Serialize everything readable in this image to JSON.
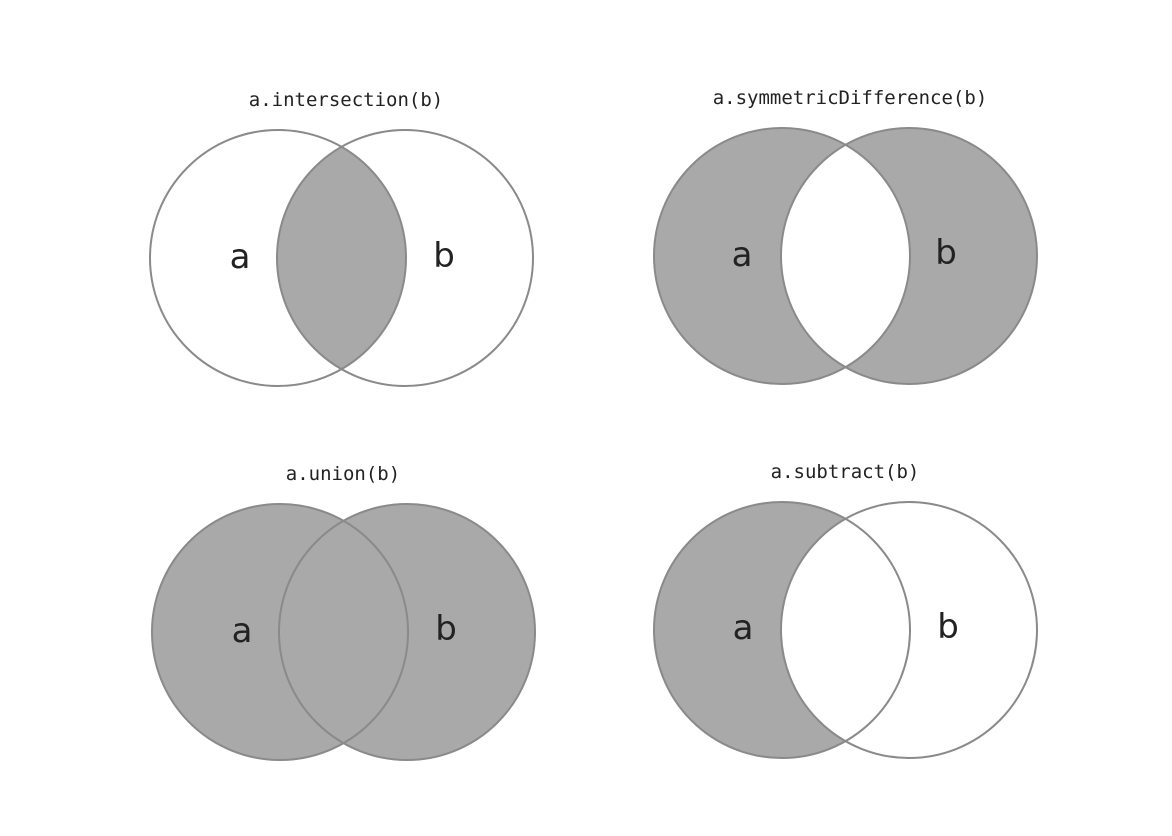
{
  "colors": {
    "shade": "#a9a9a9",
    "outline": "#8a8a8a",
    "background": "#ffffff",
    "text": "#222222"
  },
  "panels": [
    {
      "id": "intersection",
      "title": "a.intersection(b)",
      "label_a": "a",
      "label_b": "b",
      "operation": "intersection"
    },
    {
      "id": "symmetric-difference",
      "title": "a.symmetricDifference(b)",
      "label_a": "a",
      "label_b": "b",
      "operation": "symmetric-difference"
    },
    {
      "id": "union",
      "title": "a.union(b)",
      "label_a": "a",
      "label_b": "b",
      "operation": "union"
    },
    {
      "id": "subtract",
      "title": "a.subtract(b)",
      "label_a": "a",
      "label_b": "b",
      "operation": "subtract"
    }
  ]
}
